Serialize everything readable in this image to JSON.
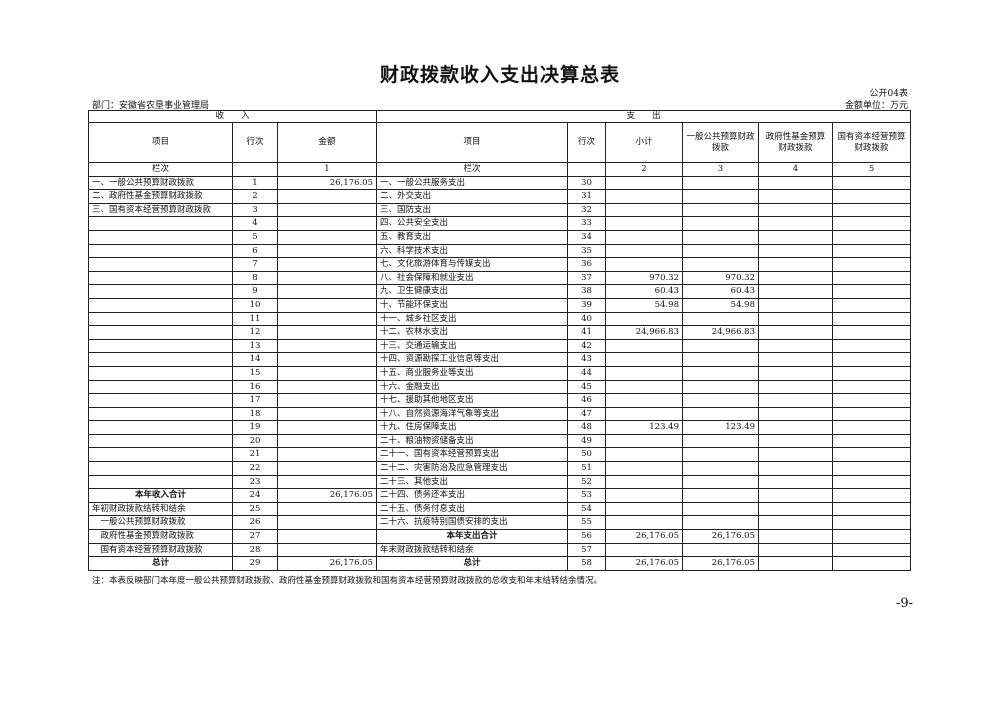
{
  "title": "财政拨款收入支出决算总表",
  "form_no": "公开04表",
  "department": "部门：安徽省农垦事业管理局",
  "unit": "金额单位：万元",
  "headers": {
    "income": "收　　入",
    "expense": "支　　出",
    "item": "项目",
    "row_no": "行次",
    "amount": "金额",
    "exp_item": "项目",
    "exp_row_no": "行次",
    "subtotal": "小计",
    "general": "一般公共预算财政拨款",
    "gov_fund": "政府性基金预算财政拨款",
    "state_capital": "国有资本经营预算财政拨款",
    "col_label": "栏次",
    "col1": "1",
    "exp_col_label": "栏次",
    "col2": "2",
    "col3": "3",
    "col4": "4",
    "col5": "5"
  },
  "rows": [
    [
      "一、一般公共预算财政拨款",
      "1",
      "26,176.05",
      "一、一般公共服务支出",
      "30",
      "",
      "",
      "",
      ""
    ],
    [
      "二、政府性基金预算财政拨款",
      "2",
      "",
      "二、外交支出",
      "31",
      "",
      "",
      "",
      ""
    ],
    [
      "三、国有资本经营预算财政拨款",
      "3",
      "",
      "三、国防支出",
      "32",
      "",
      "",
      "",
      ""
    ],
    [
      "",
      "4",
      "",
      "四、公共安全支出",
      "33",
      "",
      "",
      "",
      ""
    ],
    [
      "",
      "5",
      "",
      "五、教育支出",
      "34",
      "",
      "",
      "",
      ""
    ],
    [
      "",
      "6",
      "",
      "六、科学技术支出",
      "35",
      "",
      "",
      "",
      ""
    ],
    [
      "",
      "7",
      "",
      "七、文化旅游体育与传媒支出",
      "36",
      "",
      "",
      "",
      ""
    ],
    [
      "",
      "8",
      "",
      "八、社会保障和就业支出",
      "37",
      "970.32",
      "970.32",
      "",
      ""
    ],
    [
      "",
      "9",
      "",
      "九、卫生健康支出",
      "38",
      "60.43",
      "60.43",
      "",
      ""
    ],
    [
      "",
      "10",
      "",
      "十、节能环保支出",
      "39",
      "54.98",
      "54.98",
      "",
      ""
    ],
    [
      "",
      "11",
      "",
      "十一、城乡社区支出",
      "40",
      "",
      "",
      "",
      ""
    ],
    [
      "",
      "12",
      "",
      "十二、农林水支出",
      "41",
      "24,966.83",
      "24,966.83",
      "",
      ""
    ],
    [
      "",
      "13",
      "",
      "十三、交通运输支出",
      "42",
      "",
      "",
      "",
      ""
    ],
    [
      "",
      "14",
      "",
      "十四、资源勘探工业信息等支出",
      "43",
      "",
      "",
      "",
      ""
    ],
    [
      "",
      "15",
      "",
      "十五、商业服务业等支出",
      "44",
      "",
      "",
      "",
      ""
    ],
    [
      "",
      "16",
      "",
      "十六、金融支出",
      "45",
      "",
      "",
      "",
      ""
    ],
    [
      "",
      "17",
      "",
      "十七、援助其他地区支出",
      "46",
      "",
      "",
      "",
      ""
    ],
    [
      "",
      "18",
      "",
      "十八、自然资源海洋气象等支出",
      "47",
      "",
      "",
      "",
      ""
    ],
    [
      "",
      "19",
      "",
      "十九、住房保障支出",
      "48",
      "123.49",
      "123.49",
      "",
      ""
    ],
    [
      "",
      "20",
      "",
      "二十、粮油物资储备支出",
      "49",
      "",
      "",
      "",
      ""
    ],
    [
      "",
      "21",
      "",
      "二十一、国有资本经营预算支出",
      "50",
      "",
      "",
      "",
      ""
    ],
    [
      "",
      "22",
      "",
      "二十二、灾害防治及应急管理支出",
      "51",
      "",
      "",
      "",
      ""
    ],
    [
      "",
      "23",
      "",
      "二十三、其他支出",
      "52",
      "",
      "",
      "",
      ""
    ],
    [
      "本年收入合计",
      "24",
      "26,176.05",
      "二十四、债务还本支出",
      "53",
      "",
      "",
      "",
      ""
    ],
    [
      "年初财政拨款结转和结余",
      "25",
      "",
      "二十五、债务付息支出",
      "54",
      "",
      "",
      "",
      ""
    ],
    [
      "　一般公共预算财政拨款",
      "26",
      "",
      "二十六、抗疫特别国债安排的支出",
      "55",
      "",
      "",
      "",
      ""
    ],
    [
      "　政府性基金预算财政拨款",
      "27",
      "",
      "本年支出合计",
      "56",
      "26,176.05",
      "26,176.05",
      "",
      ""
    ],
    [
      "　国有资本经营预算财政拨款",
      "28",
      "",
      "年末财政拨款结转和结余",
      "57",
      "",
      "",
      "",
      ""
    ],
    [
      "总计",
      "29",
      "26,176.05",
      "总计",
      "58",
      "26,176.05",
      "26,176.05",
      "",
      ""
    ]
  ],
  "note": "注：本表反映部门本年度一般公共预算财政拨款、政府性基金预算财政拨款和国有资本经营预算财政拨款的总收支和年末结转结余情况。",
  "page_number": "-9-"
}
